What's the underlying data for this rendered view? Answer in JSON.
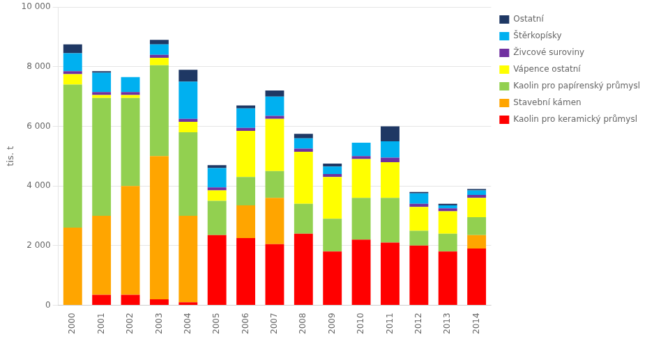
{
  "chart_data": {
    "type": "bar",
    "stacked": true,
    "ylabel": "tis. t",
    "categories": [
      "2000",
      "2001",
      "2002",
      "2003",
      "2004",
      "2005",
      "2006",
      "2007",
      "2008",
      "2009",
      "2010",
      "2011",
      "2012",
      "2013",
      "2014"
    ],
    "series": [
      {
        "name": "Kaolin pro keramický průmysl",
        "color": "#FF0000",
        "values": [
          0,
          350,
          350,
          200,
          100,
          2350,
          2250,
          2050,
          2400,
          1800,
          2200,
          2100,
          2000,
          1800,
          1900
        ]
      },
      {
        "name": "Stavební kámen",
        "color": "#FFA500",
        "values": [
          2600,
          2650,
          3650,
          4800,
          2900,
          0,
          1100,
          1550,
          0,
          0,
          0,
          0,
          0,
          0,
          450
        ]
      },
      {
        "name": "Kaolin pro papírenský průmysl",
        "color": "#92D050",
        "values": [
          4800,
          3950,
          2950,
          3050,
          2800,
          1150,
          950,
          900,
          1000,
          1100,
          1400,
          1500,
          500,
          600,
          600
        ]
      },
      {
        "name": "Vápence ostatní",
        "color": "#FFFF00",
        "values": [
          350,
          100,
          100,
          250,
          350,
          350,
          1550,
          1750,
          1750,
          1400,
          1300,
          1200,
          800,
          750,
          650
        ]
      },
      {
        "name": "Živcové suroviny",
        "color": "#7030A0",
        "values": [
          100,
          100,
          100,
          100,
          100,
          100,
          100,
          100,
          100,
          100,
          100,
          150,
          100,
          100,
          100
        ]
      },
      {
        "name": "Štěrkopísky",
        "color": "#00B0F0",
        "values": [
          600,
          650,
          500,
          350,
          1250,
          650,
          650,
          650,
          350,
          250,
          450,
          550,
          350,
          100,
          150
        ]
      },
      {
        "name": "Ostatní",
        "color": "#1F3864",
        "values": [
          300,
          50,
          0,
          150,
          400,
          100,
          100,
          200,
          150,
          100,
          0,
          500,
          50,
          50,
          50
        ]
      }
    ],
    "ylim": [
      0,
      10000
    ],
    "yticks": [
      0,
      {
        "value": 2000,
        "label": "2 000"
      },
      {
        "value": 4000,
        "label": "4 000"
      },
      {
        "value": 6000,
        "label": "6 000"
      },
      {
        "value": 8000,
        "label": "8 000"
      },
      {
        "value": 10000,
        "label": "10 000"
      }
    ],
    "grid": true,
    "legend": "right"
  }
}
